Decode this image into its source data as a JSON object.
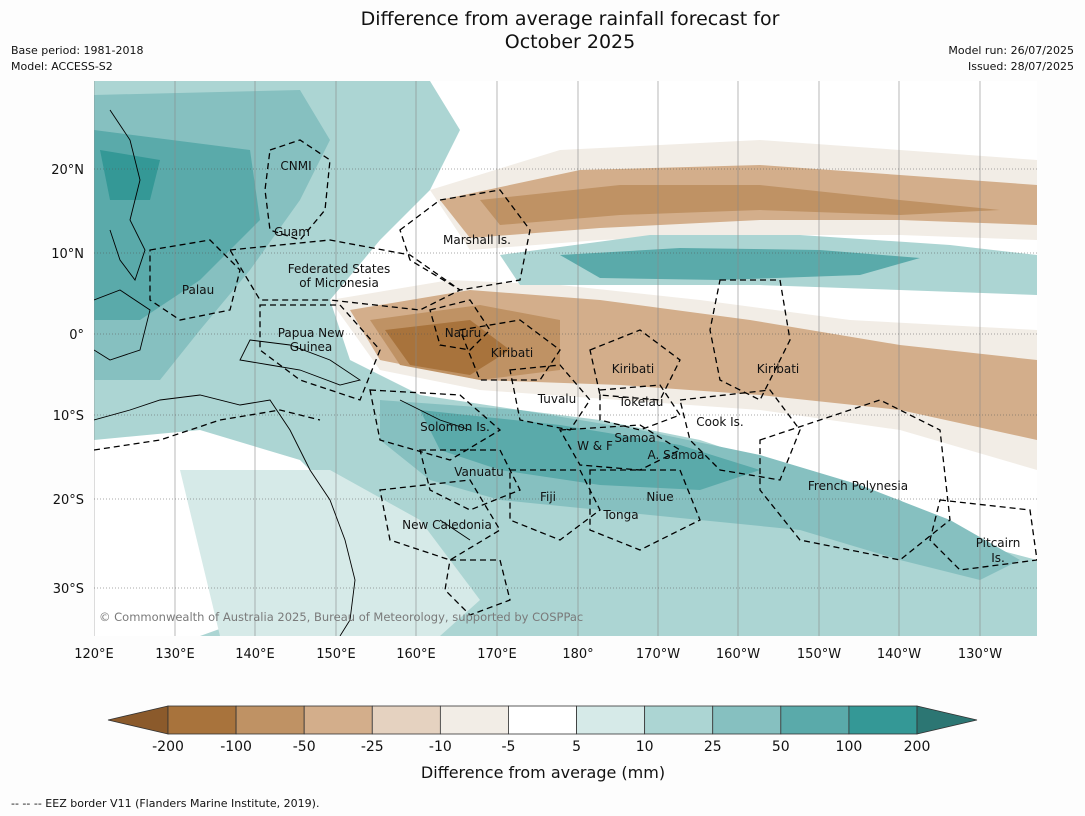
{
  "title": {
    "line1": "Difference from average rainfall forecast for",
    "line2": "October 2025"
  },
  "meta_left": {
    "base_period": "Base period: 1981-2018",
    "model": "Model: ACCESS-S2"
  },
  "meta_right": {
    "model_run": "Model run: 26/07/2025",
    "issued": "Issued: 28/07/2025"
  },
  "copyright": "© Commonwealth of Australia 2025, Bureau of Meteorology, supported by COSPPac",
  "lon_ticks": [
    "120°E",
    "130°E",
    "140°E",
    "150°E",
    "160°E",
    "170°E",
    "180°",
    "170°W",
    "160°W",
    "150°W",
    "140°W",
    "130°W"
  ],
  "lat_ticks": [
    "20°N",
    "10°N",
    "0°",
    "10°S",
    "20°S",
    "30°S"
  ],
  "regions": [
    "CNMI",
    "Guam",
    "Marshall Is.",
    "Palau",
    "Federated States",
    "of Micronesia",
    "Papua New",
    "Guinea",
    "Nauru",
    "Kiribati",
    "Kiribati",
    "Kiribati",
    "Tuvalu",
    "Tokelau",
    "Cook Is.",
    "Solomon Is.",
    "W & F",
    "Samoa",
    "A. Samoa",
    "Vanuatu",
    "Fiji",
    "Niue",
    "Tonga",
    "French Polynesia",
    "New Caledonia",
    "Pitcairn",
    "Is."
  ],
  "colorbar": {
    "ticks": [
      "-200",
      "-100",
      "-50",
      "-25",
      "-10",
      "-5",
      "5",
      "10",
      "25",
      "50",
      "100",
      "200"
    ],
    "colors": [
      "#8b5a2b",
      "#a8733c",
      "#bf9264",
      "#d3ae8b",
      "#e5d2c0",
      "#f2ede6",
      "#ffffff",
      "#d6eae8",
      "#acd5d3",
      "#86c0c0",
      "#5aaaaa",
      "#349896",
      "#2c7673"
    ],
    "label": "Difference from average (mm)"
  },
  "footnote": "--  --  -- EEZ border V11 (Flanders Marine Institute, 2019)."
}
